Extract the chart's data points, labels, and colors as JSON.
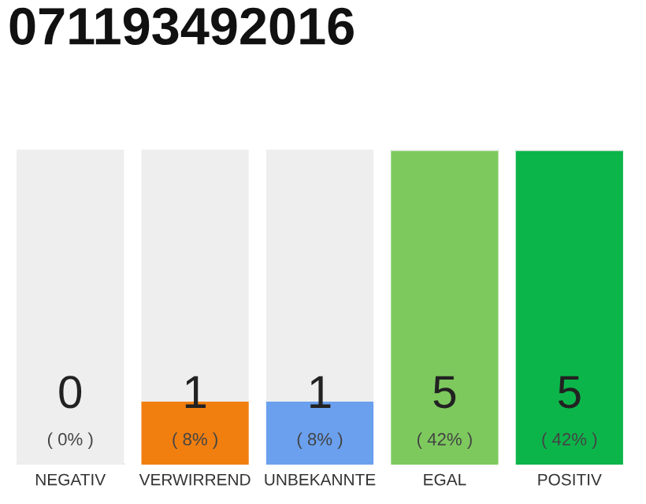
{
  "chart_data": {
    "type": "bar",
    "title": "071193492016",
    "categories": [
      "NEGATIV",
      "VERWIRREND",
      "UNBEKANNTE",
      "EGAL",
      "POSITIV"
    ],
    "ylim": [
      0,
      5
    ],
    "stacked": true,
    "series": [
      {
        "colors": [
          "#555555",
          "#f07f10",
          "#6aa0ee",
          "#7dc95e",
          "#0cb54a"
        ],
        "values": [
          0,
          1,
          1,
          5,
          5
        ],
        "value_labels": [
          "0\n( 0% )",
          "1\n( 8% )",
          "1\n( 8% )",
          "5\n( 42% )",
          "5\n( 42% )"
        ]
      },
      {
        "color": "#eeeeee",
        "values": [
          5,
          4,
          4,
          0,
          0
        ]
      }
    ],
    "grid": false,
    "legend": false,
    "tick_labels": "x"
  }
}
